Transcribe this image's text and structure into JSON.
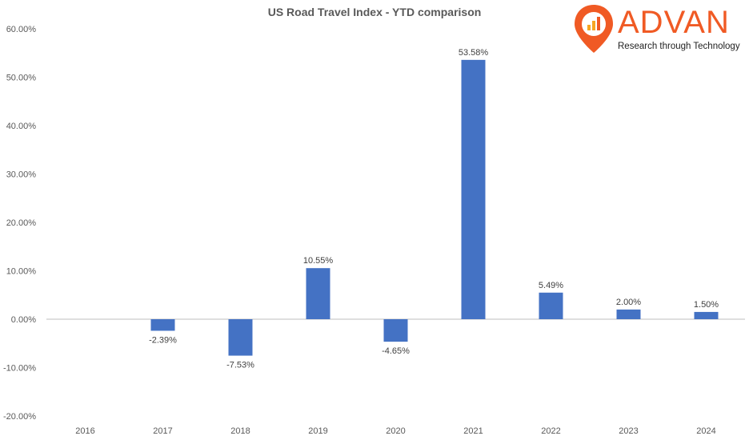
{
  "logo": {
    "name": "ADVAN",
    "tagline": "Research through Technology",
    "color": "#F05A24"
  },
  "chart_data": {
    "type": "bar",
    "title": "US Road Travel Index  - YTD comparison",
    "xlabel": "",
    "ylabel": "",
    "categories": [
      "2016",
      "2017",
      "2018",
      "2019",
      "2020",
      "2021",
      "2022",
      "2023",
      "2024"
    ],
    "values": [
      null,
      -2.39,
      -7.53,
      10.55,
      -4.65,
      53.58,
      5.49,
      2.0,
      1.5
    ],
    "data_labels": [
      "",
      "-2.39%",
      "-7.53%",
      "10.55%",
      "-4.65%",
      "53.58%",
      "5.49%",
      "2.00%",
      "1.50%"
    ],
    "ylim": [
      -20,
      60
    ],
    "yticks": [
      60,
      50,
      40,
      30,
      20,
      10,
      0,
      -10,
      -20
    ],
    "ytick_labels": [
      "60.00%",
      "50.00%",
      "40.00%",
      "30.00%",
      "20.00%",
      "10.00%",
      "0.00%",
      "-10.00%",
      "-20.00%"
    ],
    "grid": false,
    "bar_color": "#4472C4",
    "axis_color": "#BFBFBF"
  }
}
